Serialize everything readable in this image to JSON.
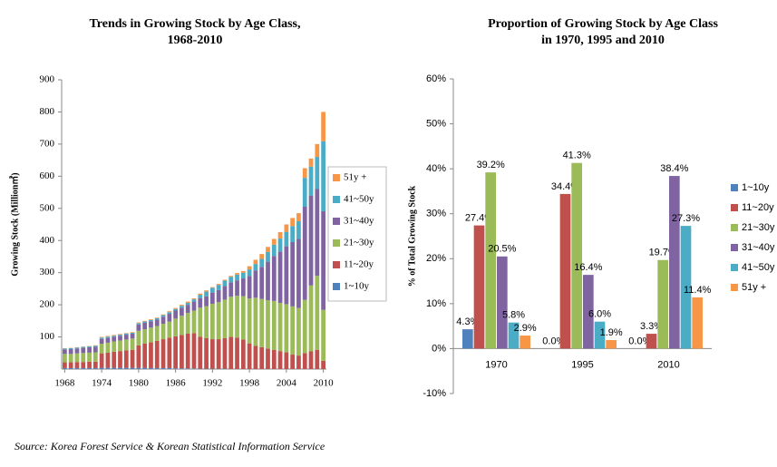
{
  "chart_data": [
    {
      "type": "bar",
      "stacked": true,
      "title": [
        "Trends in Growing Stock by Age Class,",
        "1968-2010"
      ],
      "y_label": "Growing Stock (Million㎥)",
      "categories": [
        "1968",
        null,
        null,
        null,
        null,
        null,
        "1974",
        null,
        null,
        null,
        null,
        null,
        "1980",
        null,
        null,
        null,
        null,
        null,
        "1986",
        null,
        null,
        null,
        null,
        null,
        "1992",
        null,
        null,
        null,
        null,
        null,
        "1998",
        null,
        null,
        null,
        null,
        null,
        "2004",
        null,
        null,
        null,
        null,
        null,
        "2010"
      ],
      "ylim": [
        0,
        900
      ],
      "yticks": [
        100,
        200,
        300,
        400,
        500,
        600,
        700,
        800,
        900
      ],
      "grid": false,
      "series": [
        {
          "name": "1~10y",
          "color": "#4f81bd",
          "values": [
            3,
            3,
            3,
            3,
            3,
            3,
            4,
            4,
            4,
            4,
            4,
            4,
            4,
            4,
            3,
            3,
            3,
            3,
            2,
            2,
            2,
            2,
            1,
            1,
            1,
            1,
            1,
            0,
            0,
            0,
            0,
            0,
            0,
            0,
            0,
            0,
            0,
            0,
            0,
            0,
            0,
            0,
            0
          ]
        },
        {
          "name": "11~20y",
          "color": "#c0504d",
          "values": [
            18,
            18,
            19,
            19,
            20,
            20,
            45,
            47,
            50,
            52,
            54,
            56,
            70,
            75,
            80,
            85,
            90,
            95,
            100,
            104,
            108,
            110,
            100,
            95,
            92,
            92,
            95,
            100,
            98,
            92,
            80,
            72,
            68,
            64,
            60,
            56,
            52,
            45,
            42,
            50,
            55,
            60,
            26
          ]
        },
        {
          "name": "21~30y",
          "color": "#9bbb59",
          "values": [
            26,
            26,
            27,
            28,
            28,
            29,
            30,
            31,
            32,
            33,
            34,
            35,
            45,
            45,
            46,
            46,
            48,
            50,
            55,
            60,
            65,
            70,
            90,
            100,
            110,
            115,
            120,
            125,
            130,
            135,
            140,
            150,
            150,
            150,
            152,
            150,
            150,
            150,
            148,
            165,
            205,
            230,
            158
          ]
        },
        {
          "name": "31~40y",
          "color": "#8064a2",
          "values": [
            14,
            15,
            15,
            16,
            17,
            18,
            15,
            15,
            15,
            15,
            15,
            15,
            20,
            20,
            20,
            20,
            22,
            24,
            25,
            25,
            25,
            28,
            30,
            30,
            35,
            38,
            42,
            45,
            48,
            55,
            70,
            85,
            100,
            120,
            140,
            160,
            180,
            200,
            215,
            290,
            280,
            270,
            307
          ]
        },
        {
          "name": "41~50y",
          "color": "#4bacc6",
          "values": [
            3,
            3,
            3,
            3,
            3,
            3,
            4,
            4,
            3,
            3,
            3,
            3,
            4,
            4,
            4,
            4,
            5,
            5,
            5,
            6,
            6,
            7,
            10,
            15,
            15,
            16,
            17,
            17,
            18,
            18,
            20,
            20,
            25,
            30,
            35,
            40,
            45,
            50,
            55,
            90,
            90,
            100,
            218
          ]
        },
        {
          "name": "51y +",
          "color": "#f79646",
          "values": [
            1,
            1,
            1,
            1,
            1,
            1,
            2,
            2,
            2,
            2,
            2,
            2,
            2,
            2,
            2,
            2,
            2,
            3,
            3,
            3,
            4,
            3,
            4,
            4,
            2,
            3,
            3,
            3,
            5,
            5,
            10,
            13,
            15,
            16,
            18,
            20,
            23,
            25,
            25,
            30,
            25,
            40,
            91
          ]
        }
      ]
    },
    {
      "type": "bar",
      "title": [
        "Proportion of Growing Stock by Age Class",
        "in 1970, 1995 and 2010"
      ],
      "y_label": "% of Total Growing Stock",
      "categories": [
        "1970",
        "1995",
        "2010"
      ],
      "ylim": [
        -10,
        60
      ],
      "yticks": [
        {
          "value": -10,
          "label": "-10%"
        },
        {
          "value": 0,
          "label": "0%"
        },
        {
          "value": 10,
          "label": "10%"
        },
        {
          "value": 20,
          "label": "20%"
        },
        {
          "value": 30,
          "label": "30%"
        },
        {
          "value": 40,
          "label": "40%"
        },
        {
          "value": 50,
          "label": "50%"
        },
        {
          "value": 60,
          "label": "60%"
        }
      ],
      "grid": false,
      "series": [
        {
          "name": "1~10y",
          "color": "#4f81bd",
          "values": [
            4.3,
            0.0,
            0.0
          ],
          "value_labels": [
            "4.3%",
            "0.0%",
            "0.0%"
          ]
        },
        {
          "name": "11~20y",
          "color": "#c0504d",
          "values": [
            27.4,
            34.4,
            3.3
          ],
          "value_labels": [
            "27.4%",
            "34.4%",
            "3.3%"
          ]
        },
        {
          "name": "21~30y",
          "color": "#9bbb59",
          "values": [
            39.2,
            41.3,
            19.7
          ],
          "value_labels": [
            "39.2%",
            "41.3%",
            "19.7%"
          ]
        },
        {
          "name": "31~40y",
          "color": "#8064a2",
          "values": [
            20.5,
            16.4,
            38.4
          ],
          "value_labels": [
            "20.5%",
            "16.4%",
            "38.4%"
          ]
        },
        {
          "name": "41~50y",
          "color": "#4bacc6",
          "values": [
            5.8,
            6.0,
            27.3
          ],
          "value_labels": [
            "5.8%",
            "6.0%",
            "27.3%"
          ]
        },
        {
          "name": "51y +",
          "color": "#f79646",
          "values": [
            2.9,
            1.9,
            11.4
          ],
          "value_labels": [
            "2.9%",
            "1.9%",
            "11.4%"
          ]
        }
      ]
    }
  ],
  "source": "Source: Korea Forest Service & Korean Statistical Information Service"
}
